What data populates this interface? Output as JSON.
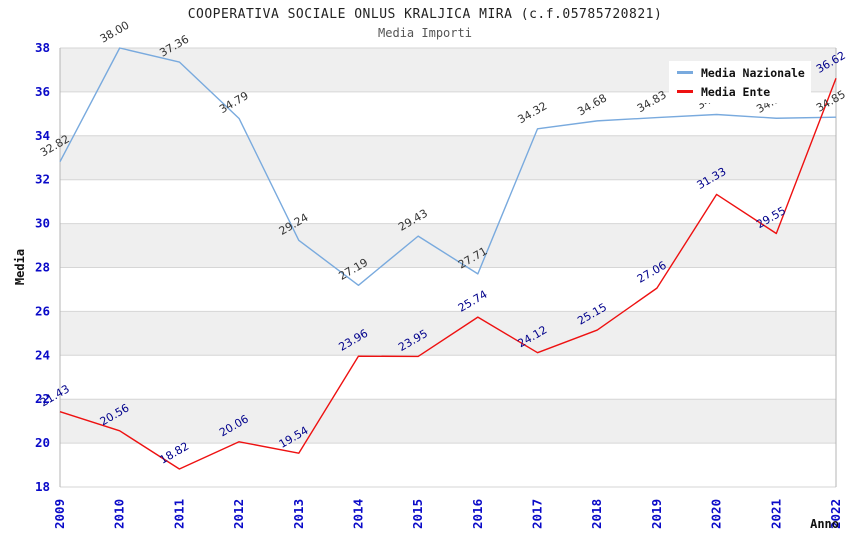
{
  "chart_data": {
    "type": "line",
    "title": "COOPERATIVA SOCIALE ONLUS KRALJICA MIRA (c.f.05785720821)",
    "subtitle": "Media Importi",
    "xlabel": "Anno",
    "ylabel": "Media",
    "x": [
      "2009",
      "2010",
      "2011",
      "2012",
      "2013",
      "2014",
      "2015",
      "2016",
      "2017",
      "2018",
      "2019",
      "2020",
      "2021",
      "2022"
    ],
    "ylim": [
      18,
      38
    ],
    "ytick_step": 2,
    "grid": "horizontal-bands-alternating",
    "legend_position": "top-right-inside",
    "series": [
      {
        "name": "Media Nazionale",
        "color": "#79aade",
        "label_color": "#333333",
        "values": [
          32.82,
          38.0,
          37.36,
          34.79,
          29.24,
          27.19,
          29.43,
          27.71,
          34.32,
          34.68,
          34.83,
          34.97,
          34.8,
          34.85
        ]
      },
      {
        "name": "Media Ente",
        "color": "#ee1111",
        "label_color": "#00008b",
        "values": [
          21.43,
          20.56,
          18.82,
          20.06,
          19.54,
          23.96,
          23.95,
          25.74,
          24.12,
          25.15,
          27.06,
          31.33,
          29.55,
          36.62
        ]
      }
    ],
    "colors": {
      "band": "#efefef",
      "gridline": "#d6d6d6",
      "plot_border": "#b5b5b5",
      "axis_tick_text": "#0a0ac8",
      "title_text": "#222222",
      "subtitle_text": "#555555"
    }
  }
}
